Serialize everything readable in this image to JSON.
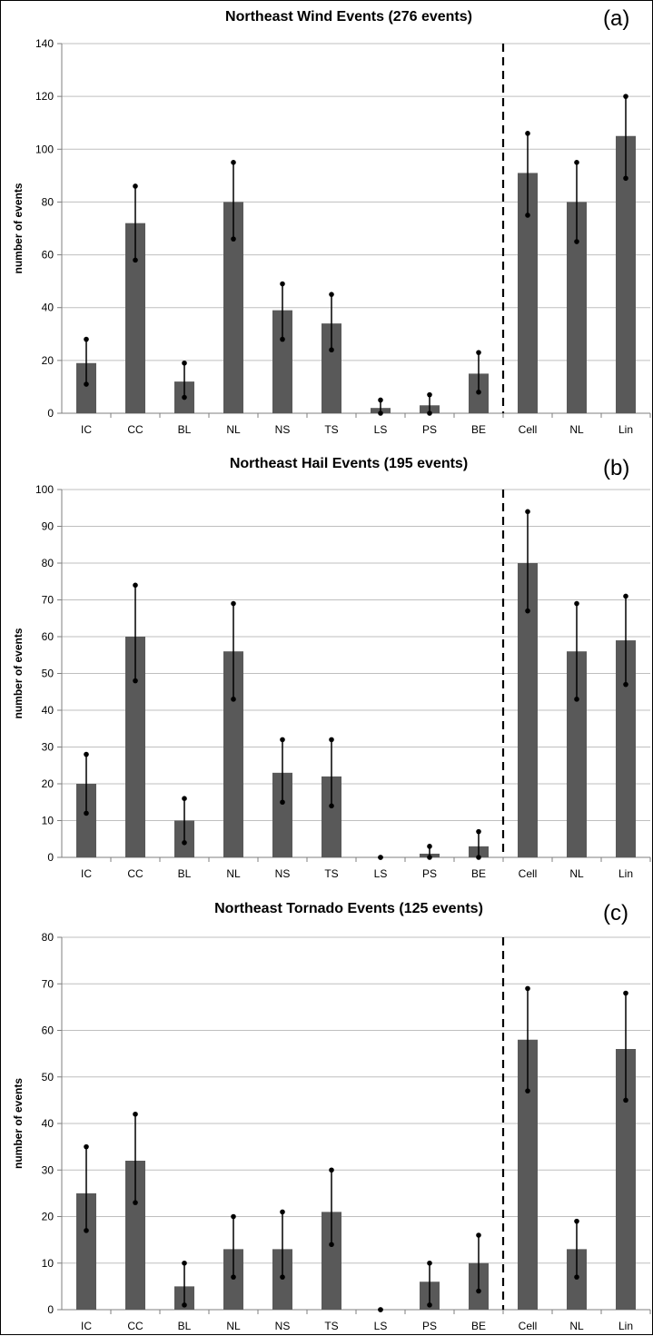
{
  "colors": {
    "bar": "#595959",
    "grid": "#bfbfbf",
    "axis": "#7f7f7f",
    "errorbar": "#000000",
    "separator": "#000000"
  },
  "chart_data": [
    {
      "type": "bar",
      "title": "Northeast Wind Events (276 events)",
      "panel_label": "(a)",
      "ylabel": "number of events",
      "xlabel": "",
      "ylim": [
        0,
        140
      ],
      "yticks": [
        0,
        20,
        40,
        60,
        80,
        100,
        120,
        140
      ],
      "grid": true,
      "categories": [
        "IC",
        "CC",
        "BL",
        "NL",
        "NS",
        "TS",
        "LS",
        "PS",
        "BE",
        "Cell",
        "NL",
        "Lin"
      ],
      "values": [
        19,
        72,
        12,
        80,
        39,
        34,
        2,
        3,
        15,
        91,
        80,
        105
      ],
      "error_low": [
        11,
        58,
        6,
        66,
        28,
        24,
        0,
        0,
        8,
        75,
        65,
        89
      ],
      "error_high": [
        28,
        86,
        19,
        95,
        49,
        45,
        5,
        7,
        23,
        106,
        95,
        120
      ],
      "separator_after_index": 8
    },
    {
      "type": "bar",
      "title": "Northeast Hail Events (195 events)",
      "panel_label": "(b)",
      "ylabel": "number of events",
      "xlabel": "",
      "ylim": [
        0,
        100
      ],
      "yticks": [
        0,
        10,
        20,
        30,
        40,
        50,
        60,
        70,
        80,
        90,
        100
      ],
      "grid": true,
      "categories": [
        "IC",
        "CC",
        "BL",
        "NL",
        "NS",
        "TS",
        "LS",
        "PS",
        "BE",
        "Cell",
        "NL",
        "Lin"
      ],
      "values": [
        20,
        60,
        10,
        56,
        23,
        22,
        0,
        1,
        3,
        80,
        56,
        59
      ],
      "error_low": [
        12,
        48,
        4,
        43,
        15,
        14,
        0,
        0,
        0,
        67,
        43,
        47
      ],
      "error_high": [
        28,
        74,
        16,
        69,
        32,
        32,
        0,
        3,
        7,
        94,
        69,
        71
      ],
      "separator_after_index": 8
    },
    {
      "type": "bar",
      "title": "Northeast Tornado Events (125 events)",
      "panel_label": "(c)",
      "ylabel": "number of events",
      "xlabel": "",
      "ylim": [
        0,
        80
      ],
      "yticks": [
        0,
        10,
        20,
        30,
        40,
        50,
        60,
        70,
        80
      ],
      "grid": true,
      "categories": [
        "IC",
        "CC",
        "BL",
        "NL",
        "NS",
        "TS",
        "LS",
        "PS",
        "BE",
        "Cell",
        "NL",
        "Lin"
      ],
      "values": [
        25,
        32,
        5,
        13,
        13,
        21,
        0,
        6,
        10,
        58,
        13,
        56
      ],
      "error_low": [
        17,
        23,
        1,
        7,
        7,
        14,
        0,
        1,
        4,
        47,
        7,
        45
      ],
      "error_high": [
        35,
        42,
        10,
        20,
        21,
        30,
        0,
        10,
        16,
        69,
        19,
        68
      ],
      "separator_after_index": 8
    }
  ]
}
